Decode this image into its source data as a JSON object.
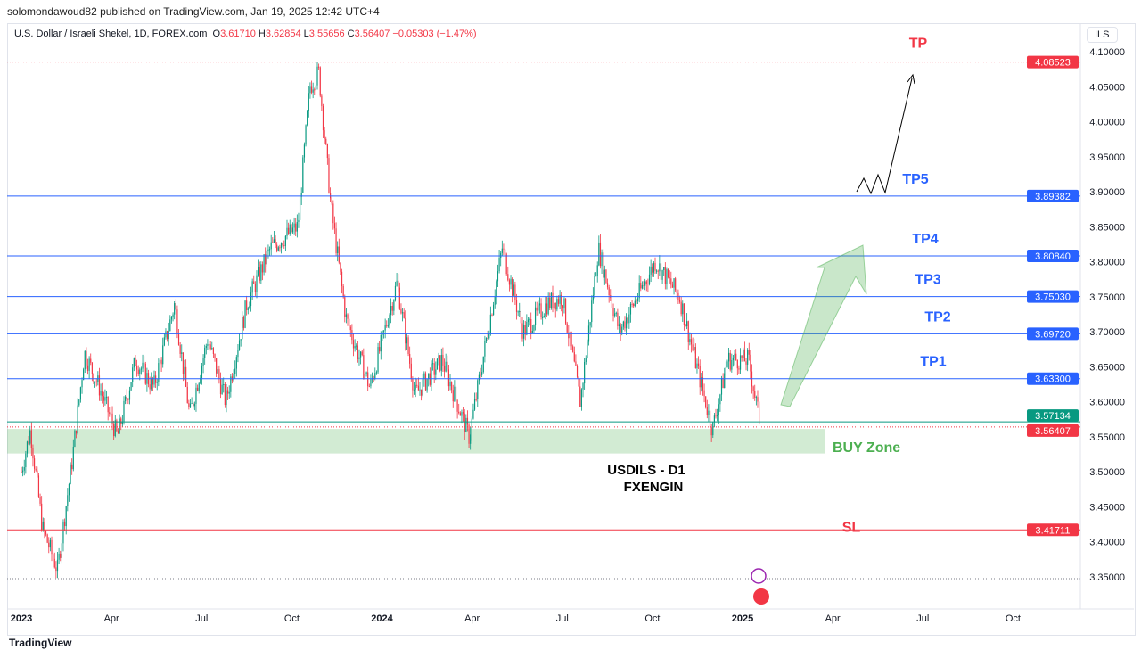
{
  "header": {
    "published": "solomondawoud82 published on TradingView.com, Jan 19, 2025 12:42 UTC+4",
    "symbol": "U.S. Dollar / Israeli Shekel, 1D, FOREX.com",
    "open": "3.61710",
    "high": "3.62854",
    "low": "3.55656",
    "close": "3.56407",
    "change": "−0.05303 (−1.47%)",
    "currency": "ILS"
  },
  "footer": {
    "brand": "TradingView"
  },
  "chart_data": {
    "type": "candlestick",
    "title": "USDILS - D1",
    "subtitle": "FXENGIN",
    "ylim": [
      3.33,
      4.11
    ],
    "y_ticks": [
      "4.10000",
      "4.05000",
      "4.00000",
      "3.95000",
      "3.90000",
      "3.85000",
      "3.80000",
      "3.75000",
      "3.70000",
      "3.65000",
      "3.60000",
      "3.55000",
      "3.50000",
      "3.45000",
      "3.40000",
      "3.35000"
    ],
    "x_ticks": [
      "2023",
      "Apr",
      "Jul",
      "Oct",
      "2024",
      "Apr",
      "Jul",
      "Oct",
      "2025",
      "Apr",
      "Jul",
      "Oct"
    ],
    "price_path_months": [
      [
        0,
        3.5
      ],
      [
        0.3,
        3.56
      ],
      [
        0.7,
        3.42
      ],
      [
        1.2,
        3.36
      ],
      [
        1.7,
        3.52
      ],
      [
        2.1,
        3.67
      ],
      [
        2.6,
        3.62
      ],
      [
        3.2,
        3.55
      ],
      [
        3.8,
        3.66
      ],
      [
        4.4,
        3.62
      ],
      [
        5.1,
        3.74
      ],
      [
        5.6,
        3.58
      ],
      [
        6.2,
        3.69
      ],
      [
        6.8,
        3.6
      ],
      [
        7.5,
        3.74
      ],
      [
        8.3,
        3.82
      ],
      [
        9.2,
        3.85
      ],
      [
        9.6,
        4.05
      ],
      [
        9.9,
        4.07
      ],
      [
        10.3,
        3.88
      ],
      [
        10.8,
        3.72
      ],
      [
        11.6,
        3.62
      ],
      [
        12.5,
        3.77
      ],
      [
        13.1,
        3.61
      ],
      [
        14.0,
        3.66
      ],
      [
        14.9,
        3.55
      ],
      [
        15.6,
        3.72
      ],
      [
        16.0,
        3.82
      ],
      [
        16.7,
        3.7
      ],
      [
        17.5,
        3.74
      ],
      [
        18.0,
        3.75
      ],
      [
        18.6,
        3.6
      ],
      [
        19.2,
        3.82
      ],
      [
        19.9,
        3.7
      ],
      [
        21.1,
        3.8
      ],
      [
        21.9,
        3.75
      ],
      [
        23.0,
        3.56
      ],
      [
        23.5,
        3.66
      ],
      [
        24.2,
        3.66
      ],
      [
        24.6,
        3.564
      ]
    ],
    "levels": [
      {
        "label": "TP",
        "price": "4.08523",
        "color": "#f23645",
        "style": "dotted"
      },
      {
        "label": "TP5",
        "price": "3.89382",
        "color": "#2962ff"
      },
      {
        "label": "TP4",
        "price": "3.80840",
        "color": "#2962ff"
      },
      {
        "label": "TP3",
        "price": "3.75030",
        "color": "#2962ff"
      },
      {
        "label": "TP2",
        "price": "3.69720",
        "color": "#2962ff"
      },
      {
        "label": "TP1",
        "price": "3.63300",
        "color": "#2962ff"
      },
      {
        "label": "",
        "price": "3.57134",
        "color": "#089981"
      },
      {
        "label": "",
        "price": "3.56407",
        "color": "#f23645",
        "style": "dotted"
      },
      {
        "label": "SL",
        "price": "3.41711",
        "color": "#f23645"
      }
    ],
    "buy_zone": {
      "label": "BUY Zone",
      "from": 3.53,
      "to": 3.565,
      "color": "#4caf50"
    },
    "up_color": "#089981",
    "down_color": "#f23645"
  }
}
